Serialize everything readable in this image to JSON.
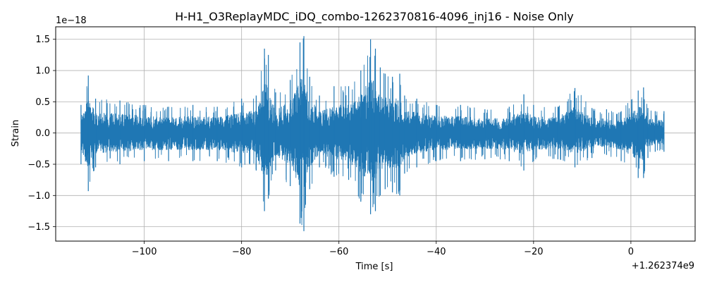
{
  "chart_data": {
    "type": "line",
    "title": "H-H1_O3ReplayMDC_iDQ_combo-1262370816-4096_inj16 - Noise Only",
    "xlabel": "Time [s]",
    "ylabel": "Strain",
    "x_offset_label": "+1.262374e9",
    "y_scale_label": "1e−18",
    "xlim": [
      -118.2,
      13.2
    ],
    "ylim": [
      -1.73,
      1.7
    ],
    "x_ticks": [
      -100,
      -80,
      -60,
      -40,
      -20,
      0
    ],
    "x_tick_labels": [
      "−100",
      "−80",
      "−60",
      "−40",
      "−20",
      "0"
    ],
    "y_ticks": [
      -1.5,
      -1.0,
      -0.5,
      0.0,
      0.5,
      1.0,
      1.5
    ],
    "y_tick_labels": [
      "−1.5",
      "−1.0",
      "−0.5",
      "0.0",
      "0.5",
      "1.0",
      "1.5"
    ],
    "grid": true,
    "series": [
      {
        "color": "#1f77b4",
        "x_start": -113.0,
        "x_end": 6.8,
        "envelope_x": [
          -113.0,
          -111.5,
          -110.0,
          -105.0,
          -100.0,
          -95.0,
          -90.0,
          -85.0,
          -80.0,
          -77.0,
          -75.3,
          -74.5,
          -73.0,
          -70.0,
          -68.0,
          -67.2,
          -66.0,
          -64.0,
          -61.0,
          -58.0,
          -55.5,
          -53.5,
          -52.5,
          -51.5,
          -50.5,
          -49.0,
          -47.5,
          -46.5,
          -44.0,
          -40.0,
          -35.0,
          -30.0,
          -25.0,
          -22.0,
          -20.0,
          -15.0,
          -11.5,
          -8.0,
          -5.0,
          -2.0,
          1.5,
          2.6,
          3.5,
          5.0,
          6.8
        ],
        "envelope_max": [
          0.45,
          0.92,
          0.55,
          0.52,
          0.45,
          0.42,
          0.45,
          0.42,
          0.55,
          0.6,
          1.35,
          1.25,
          0.65,
          0.85,
          1.45,
          1.55,
          0.9,
          0.6,
          0.75,
          0.75,
          1.0,
          1.5,
          1.35,
          1.05,
          0.95,
          0.9,
          0.95,
          0.6,
          0.55,
          0.45,
          0.45,
          0.38,
          0.42,
          0.62,
          0.45,
          0.42,
          0.72,
          0.4,
          0.38,
          0.35,
          0.68,
          0.73,
          0.4,
          0.35,
          0.35
        ],
        "envelope_min": [
          -0.5,
          -0.93,
          -0.55,
          -0.5,
          -0.45,
          -0.45,
          -0.45,
          -0.45,
          -0.55,
          -0.6,
          -1.25,
          -1.05,
          -0.6,
          -0.85,
          -1.45,
          -1.57,
          -0.9,
          -0.55,
          -0.7,
          -0.75,
          -1.1,
          -1.3,
          -1.25,
          -1.0,
          -0.9,
          -0.95,
          -1.0,
          -0.65,
          -0.55,
          -0.45,
          -0.45,
          -0.42,
          -0.45,
          -0.6,
          -0.45,
          -0.42,
          -0.55,
          -0.4,
          -0.35,
          -0.45,
          -0.72,
          -0.72,
          -0.4,
          -0.3,
          -0.3
        ]
      }
    ]
  }
}
